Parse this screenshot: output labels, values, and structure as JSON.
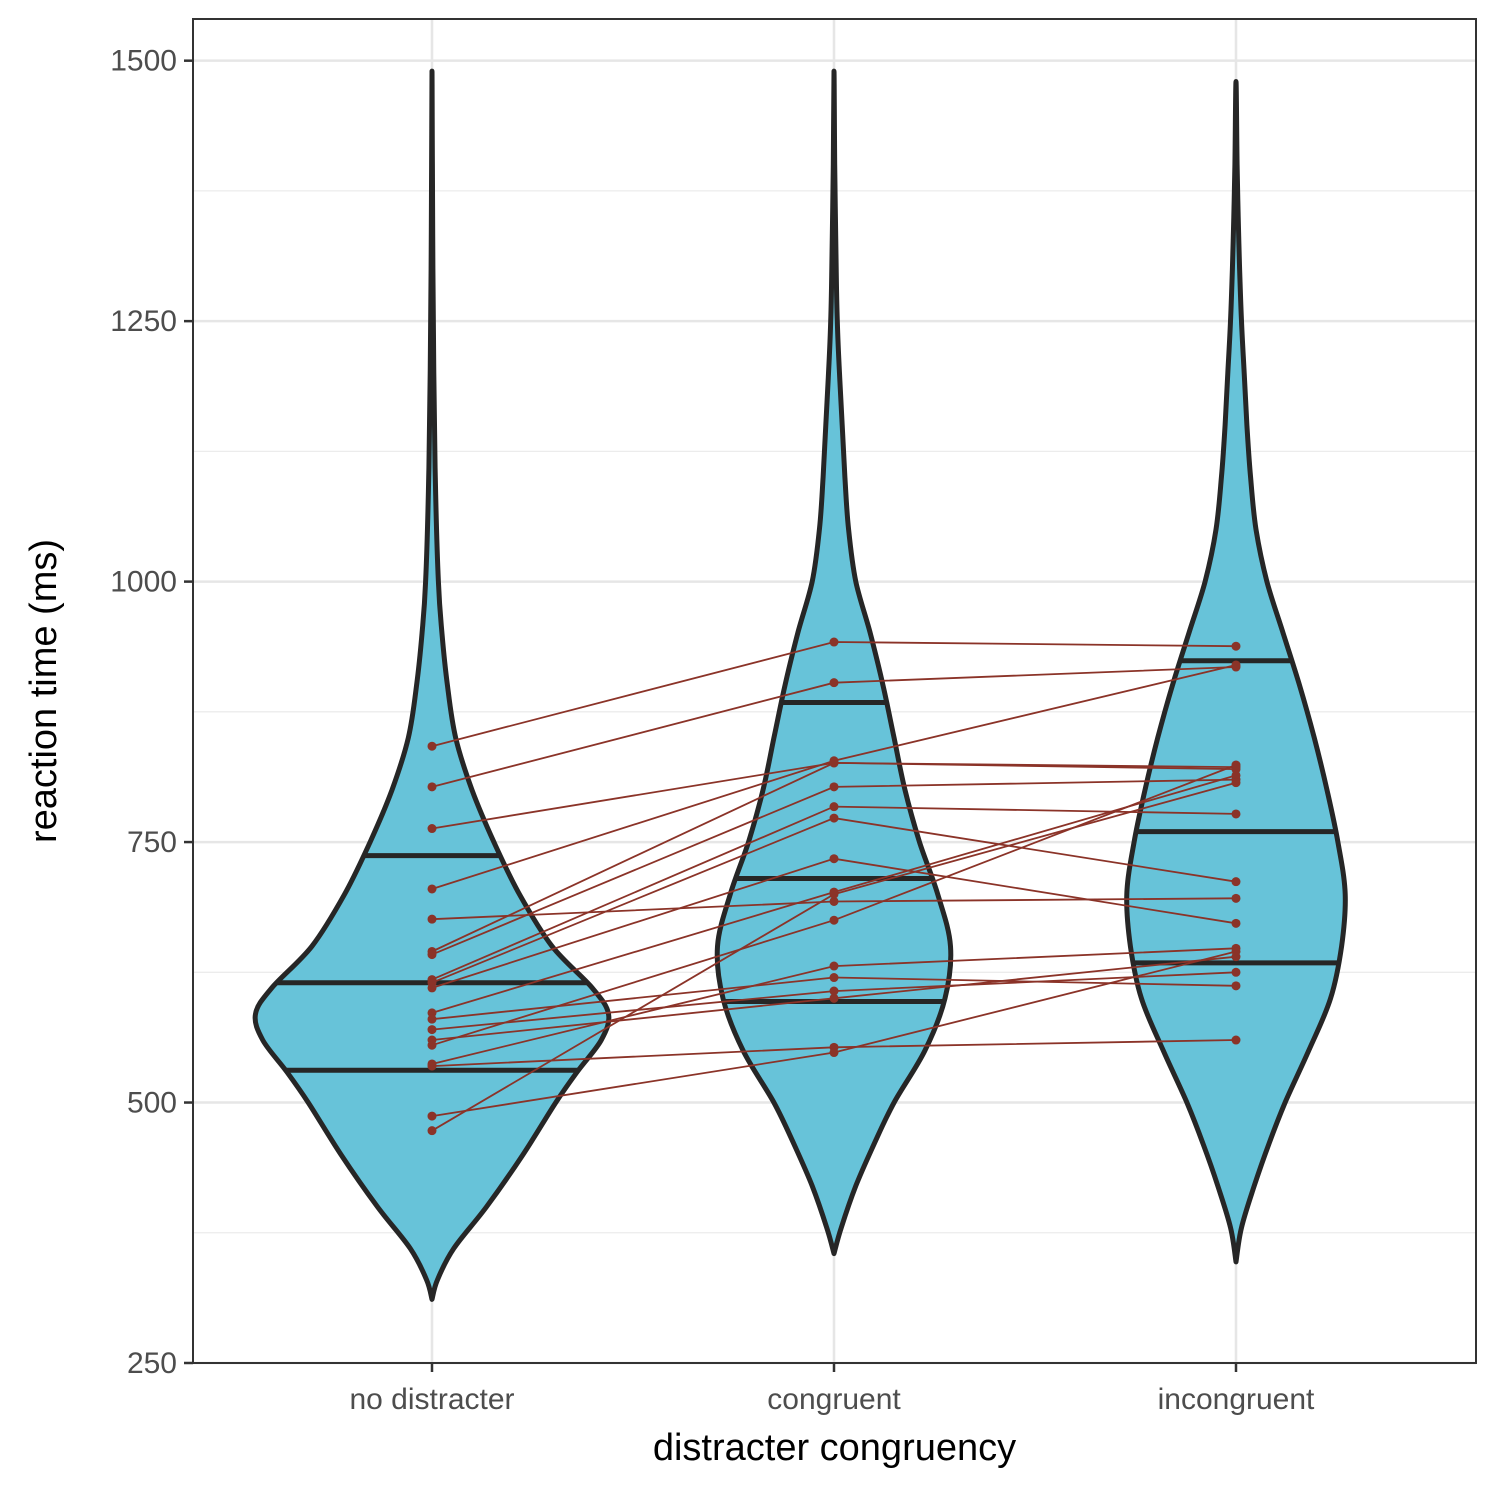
{
  "chart_data": {
    "type": "violin",
    "title": "",
    "xlabel": "distracter congruency",
    "ylabel": "reaction time (ms)",
    "ylim": [
      250,
      1540
    ],
    "yticks": [
      250,
      500,
      750,
      1000,
      1250,
      1500
    ],
    "grid": true,
    "colors": {
      "violin_fill": "#67c3d9",
      "violin_stroke": "#262626",
      "line": "#8b3328",
      "grid": "#e6e6e6"
    },
    "categories": [
      "no distracter",
      "congruent",
      "incongruent"
    ],
    "violins": [
      {
        "category": "no distracter",
        "quantiles": [
          531,
          615,
          737
        ],
        "profile": [
          [
            311,
            0
          ],
          [
            330,
            0.03
          ],
          [
            360,
            0.12
          ],
          [
            400,
            0.3
          ],
          [
            450,
            0.5
          ],
          [
            500,
            0.68
          ],
          [
            530,
            0.8
          ],
          [
            560,
            0.93
          ],
          [
            585,
            0.97
          ],
          [
            610,
            0.88
          ],
          [
            650,
            0.66
          ],
          [
            700,
            0.48
          ],
          [
            750,
            0.34
          ],
          [
            800,
            0.22
          ],
          [
            850,
            0.13
          ],
          [
            900,
            0.085
          ],
          [
            950,
            0.055
          ],
          [
            1000,
            0.035
          ],
          [
            1100,
            0.018
          ],
          [
            1200,
            0.01
          ],
          [
            1300,
            0.005
          ],
          [
            1400,
            0.002
          ],
          [
            1490,
            0
          ]
        ]
      },
      {
        "category": "congruent",
        "quantiles": [
          597,
          715,
          884
        ],
        "profile": [
          [
            355,
            0
          ],
          [
            380,
            0.04
          ],
          [
            420,
            0.12
          ],
          [
            460,
            0.22
          ],
          [
            500,
            0.33
          ],
          [
            550,
            0.5
          ],
          [
            600,
            0.61
          ],
          [
            650,
            0.64
          ],
          [
            700,
            0.57
          ],
          [
            750,
            0.47
          ],
          [
            800,
            0.39
          ],
          [
            850,
            0.33
          ],
          [
            900,
            0.27
          ],
          [
            950,
            0.2
          ],
          [
            1000,
            0.12
          ],
          [
            1050,
            0.08
          ],
          [
            1100,
            0.06
          ],
          [
            1150,
            0.045
          ],
          [
            1200,
            0.03
          ],
          [
            1250,
            0.018
          ],
          [
            1300,
            0.012
          ],
          [
            1400,
            0.004
          ],
          [
            1490,
            0
          ]
        ]
      },
      {
        "category": "incongruent",
        "quantiles": [
          634,
          760,
          924
        ],
        "profile": [
          [
            347,
            0
          ],
          [
            380,
            0.03
          ],
          [
            420,
            0.1
          ],
          [
            460,
            0.18
          ],
          [
            500,
            0.27
          ],
          [
            550,
            0.4
          ],
          [
            600,
            0.52
          ],
          [
            650,
            0.58
          ],
          [
            700,
            0.6
          ],
          [
            750,
            0.56
          ],
          [
            800,
            0.5
          ],
          [
            850,
            0.43
          ],
          [
            900,
            0.35
          ],
          [
            950,
            0.26
          ],
          [
            1000,
            0.17
          ],
          [
            1050,
            0.11
          ],
          [
            1100,
            0.08
          ],
          [
            1150,
            0.06
          ],
          [
            1200,
            0.045
          ],
          [
            1250,
            0.03
          ],
          [
            1300,
            0.02
          ],
          [
            1350,
            0.012
          ],
          [
            1400,
            0.006
          ],
          [
            1480,
            0
          ]
        ]
      }
    ],
    "participants": [
      [
        842,
        942,
        938
      ],
      [
        803,
        903,
        918
      ],
      [
        763,
        826,
        822
      ],
      [
        705,
        828,
        920
      ],
      [
        676,
        693,
        696
      ],
      [
        645,
        826,
        820
      ],
      [
        642,
        803,
        810
      ],
      [
        618,
        784,
        777
      ],
      [
        615,
        773,
        712
      ],
      [
        610,
        734,
        672
      ],
      [
        586,
        702,
        814
      ],
      [
        580,
        620,
        612
      ],
      [
        570,
        607,
        625
      ],
      [
        560,
        600,
        640
      ],
      [
        555,
        675,
        824
      ],
      [
        537,
        631,
        648
      ],
      [
        535,
        553,
        560
      ],
      [
        487,
        548,
        645
      ],
      [
        473,
        700,
        807
      ]
    ]
  }
}
